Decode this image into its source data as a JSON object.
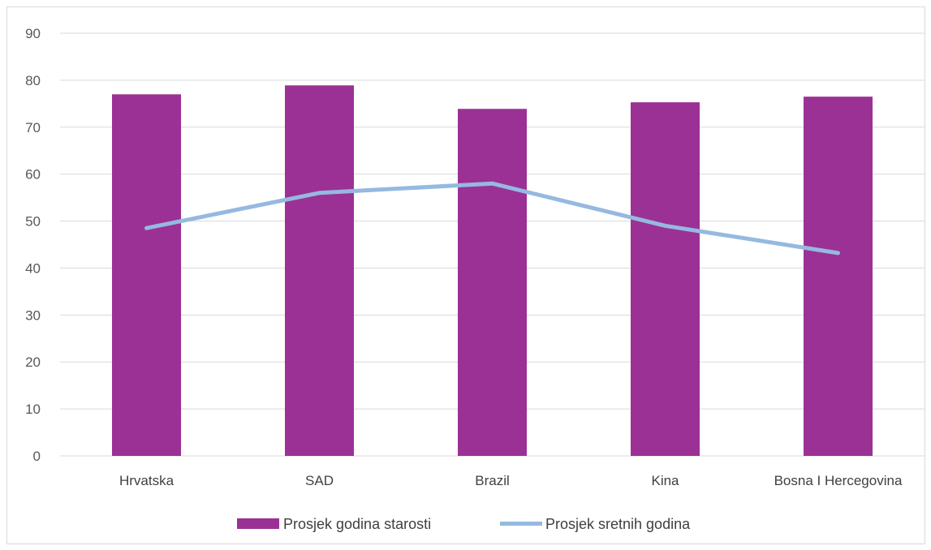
{
  "chart_data": {
    "type": "bar",
    "title": "",
    "xlabel": "",
    "ylabel": "",
    "ylim": [
      0,
      90
    ],
    "yticks": [
      0,
      10,
      20,
      30,
      40,
      50,
      60,
      70,
      80,
      90
    ],
    "grid": true,
    "legend_position": "bottom",
    "categories": [
      "Hrvatska",
      "SAD",
      "Brazil",
      "Kina",
      "Bosna I Hercegovina"
    ],
    "series": [
      {
        "name": "Prosjek godina starosti",
        "type": "bar",
        "color": "#9b3195",
        "values": [
          77,
          78.9,
          73.9,
          75.3,
          76.5
        ]
      },
      {
        "name": "Prosjek sretnih godina",
        "type": "line",
        "color": "#95b9e0",
        "values": [
          48.5,
          56,
          58,
          49,
          43.2
        ]
      }
    ]
  }
}
